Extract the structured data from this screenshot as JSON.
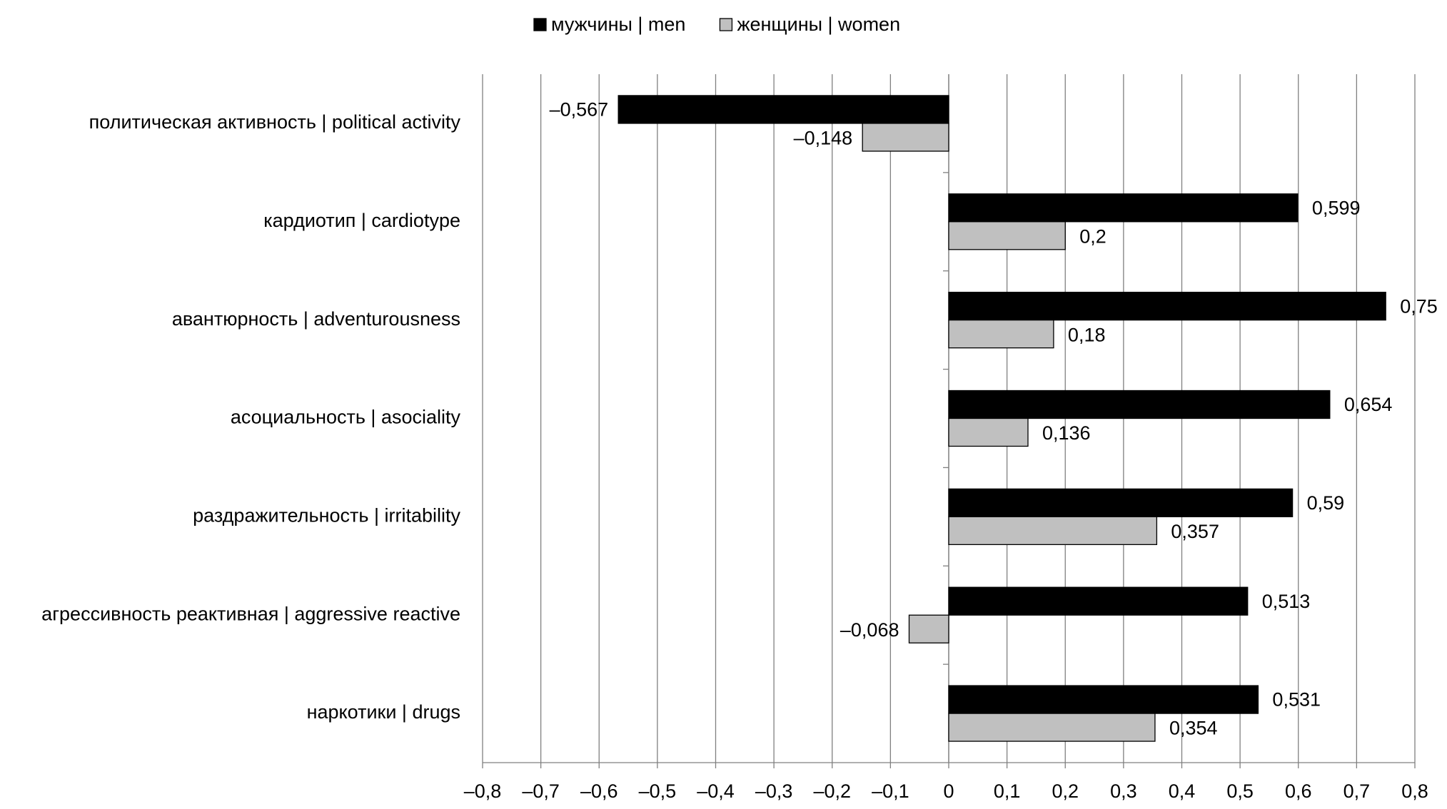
{
  "chart_data": {
    "type": "hbar",
    "categories": [
      "политическая активность | political activity",
      "кардиотип | cardiotype",
      "авантюрность | adventurousness",
      "асоциальность | asociality",
      "раздражительность | irritability",
      "агрессивность реактивная | aggressive reactive",
      "наркотики | drugs"
    ],
    "series": [
      {
        "name": "мужчины | men",
        "color": "#000000",
        "values": [
          -0.567,
          0.599,
          0.75,
          0.654,
          0.59,
          0.513,
          0.531
        ],
        "value_labels": [
          "–0,567",
          "0,599",
          "0,75",
          "0,654",
          "0,59",
          "0,513",
          "0,531"
        ]
      },
      {
        "name": "женщины | women",
        "color": "#c0c0c0",
        "values": [
          -0.148,
          0.2,
          0.18,
          0.136,
          0.357,
          -0.068,
          0.354
        ],
        "value_labels": [
          "–0,148",
          "0,2",
          "0,18",
          "0,136",
          "0,357",
          "–0,068",
          "0,354"
        ]
      }
    ],
    "xlim": [
      -0.8,
      0.8
    ],
    "xticks": [
      {
        "value": -0.8,
        "label": "–0,8"
      },
      {
        "value": -0.7,
        "label": "–0,7"
      },
      {
        "value": -0.6,
        "label": "–0,6"
      },
      {
        "value": -0.5,
        "label": "–0,5"
      },
      {
        "value": -0.4,
        "label": "–0,4"
      },
      {
        "value": -0.3,
        "label": "–0,3"
      },
      {
        "value": -0.2,
        "label": "–0,2"
      },
      {
        "value": -0.1,
        "label": "–0,1"
      },
      0,
      {
        "value": 0.1,
        "label": "0,1"
      },
      {
        "value": 0.2,
        "label": "0,2"
      },
      {
        "value": 0.3,
        "label": "0,3"
      },
      {
        "value": 0.4,
        "label": "0,4"
      },
      {
        "value": 0.5,
        "label": "0,5"
      },
      {
        "value": 0.6,
        "label": "0,6"
      },
      {
        "value": 0.7,
        "label": "0,7"
      },
      {
        "value": 0.8,
        "label": "0,8"
      }
    ],
    "grid": true,
    "legend": "top"
  }
}
